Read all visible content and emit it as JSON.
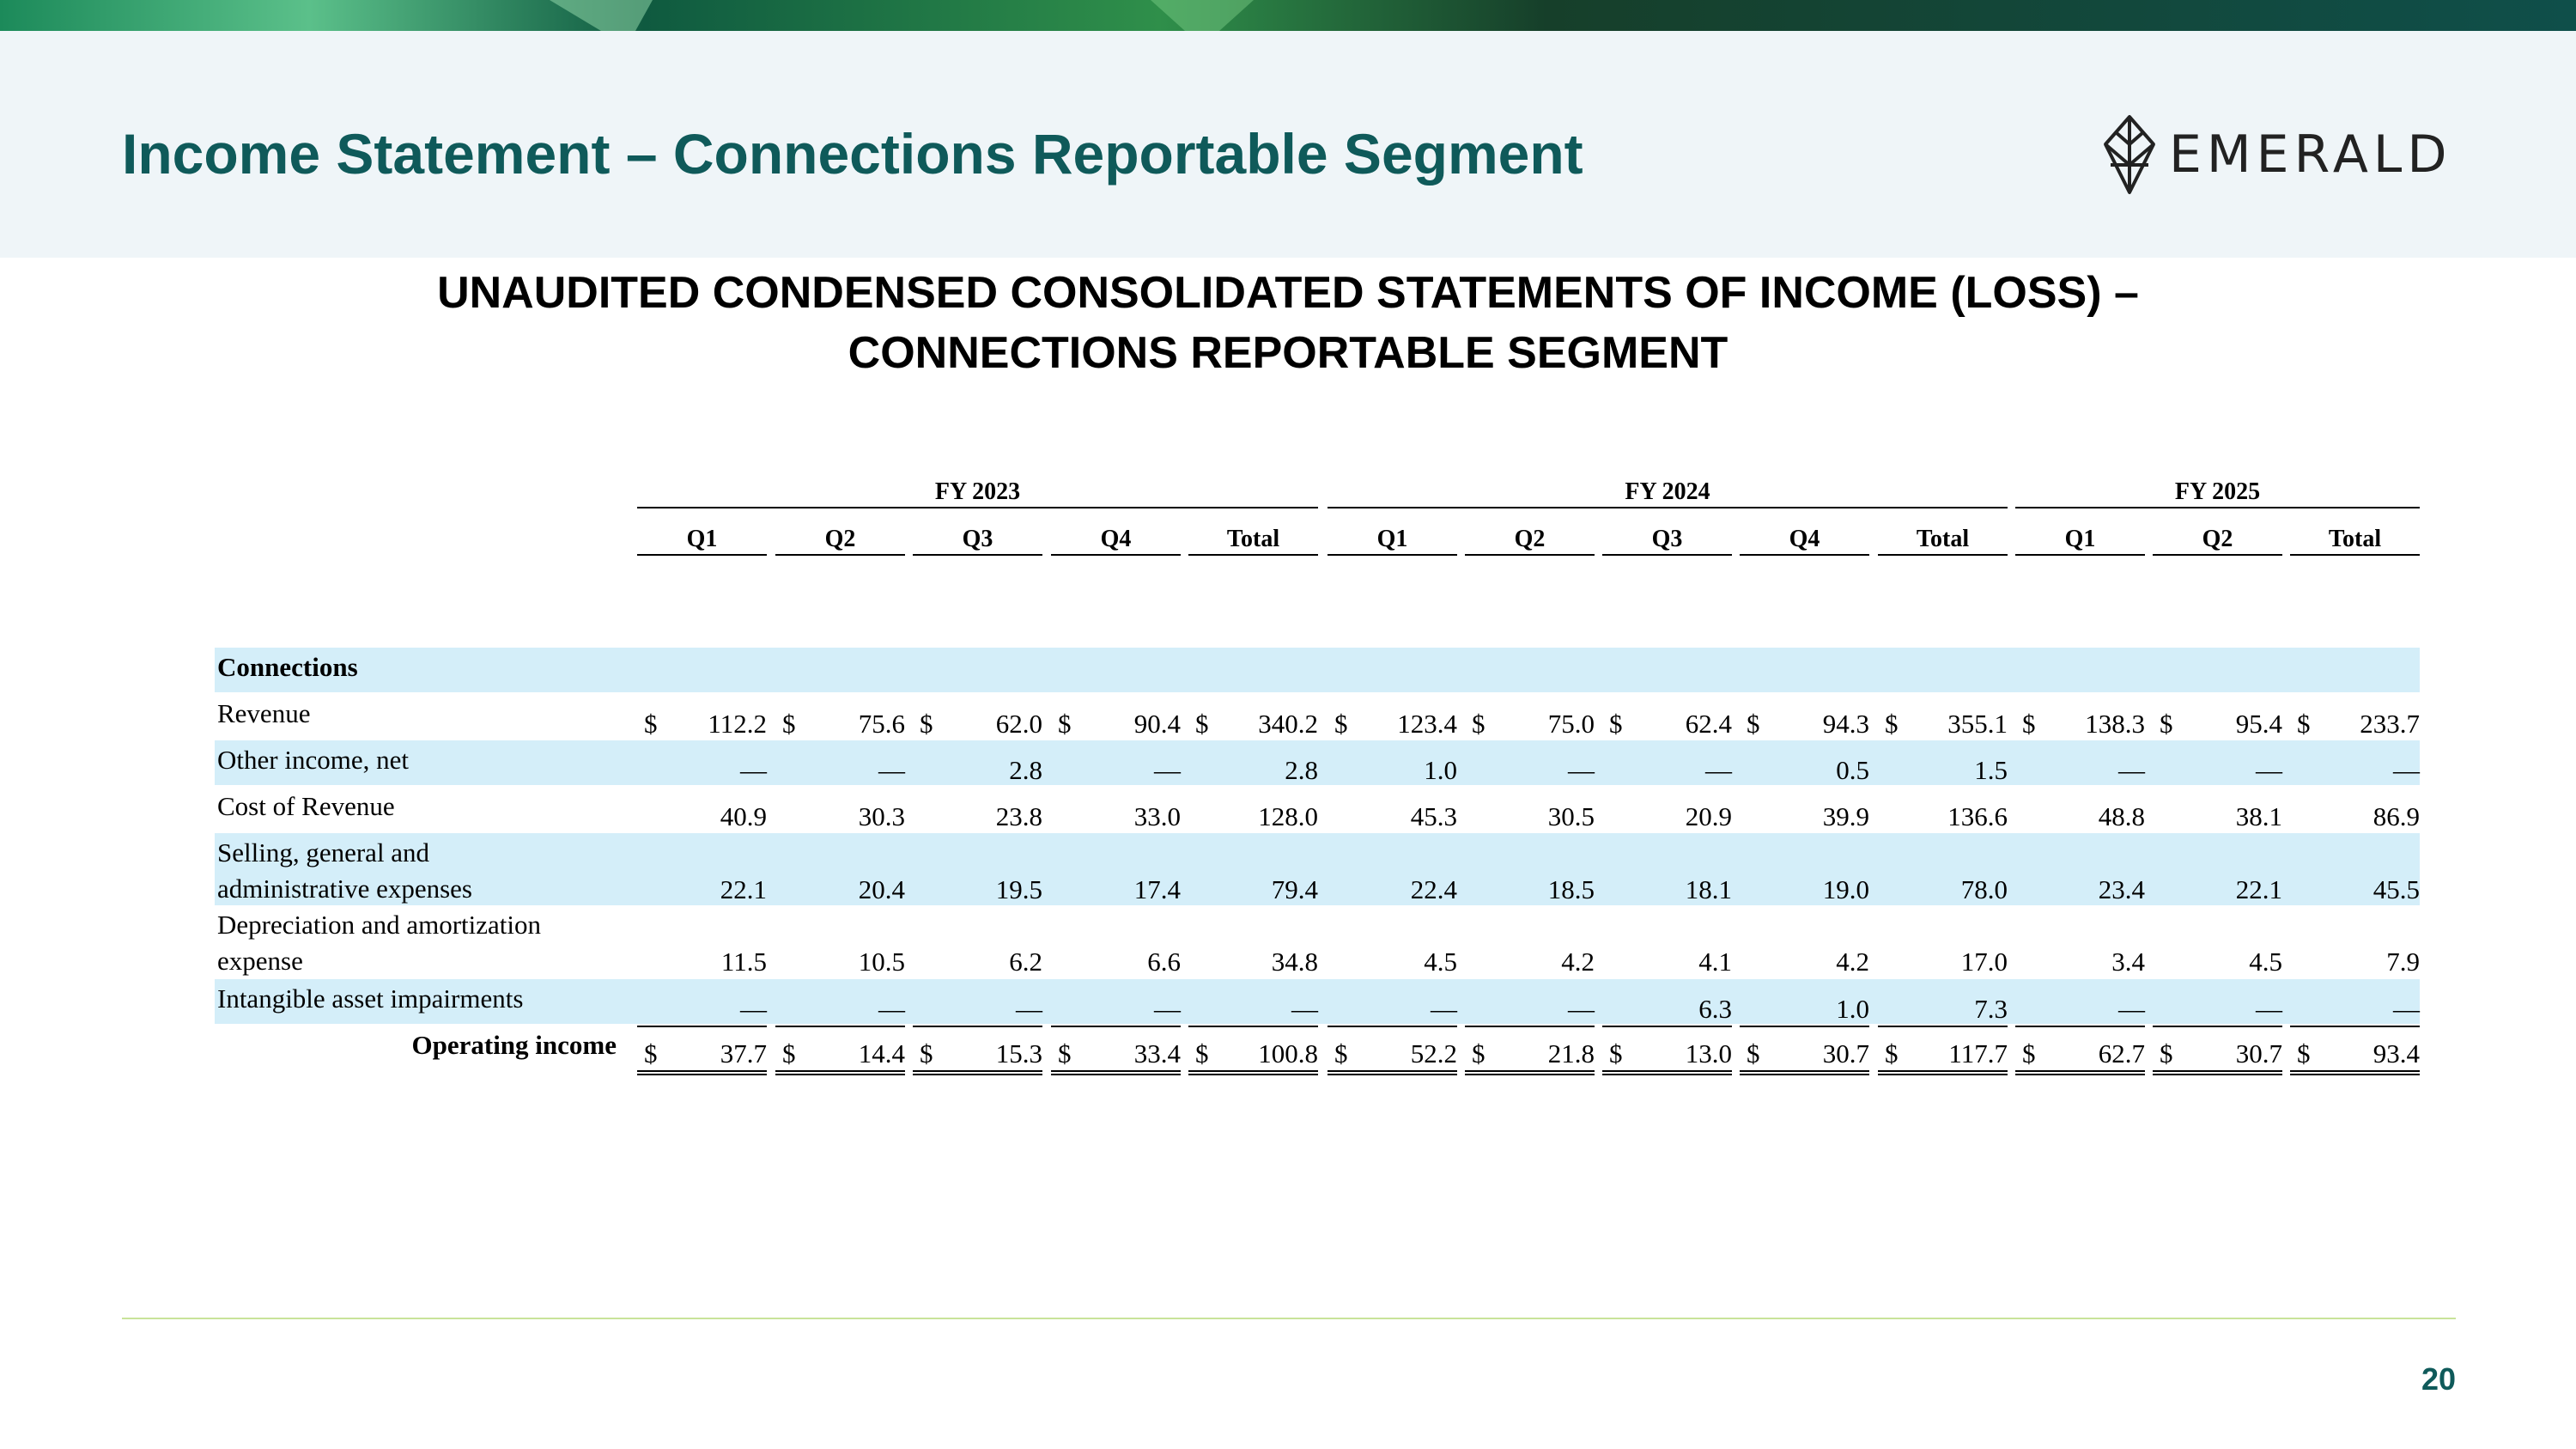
{
  "slide": {
    "title": "Income Statement – Connections Reportable Segment",
    "logo_text": "EMERALD",
    "subtitle_line1": "UNAUDITED CONDENSED CONSOLIDATED STATEMENTS OF INCOME (LOSS) –",
    "subtitle_line2": "CONNECTIONS REPORTABLE SEGMENT",
    "page_number": "20",
    "colors": {
      "title": "#0f5a5a",
      "band": "#d4eef9",
      "header_bg": "#eff5f8",
      "footer_rule": "#c9e39a"
    }
  },
  "table": {
    "fiscal_years": [
      "FY 2023",
      "FY 2024",
      "FY 2025"
    ],
    "columns": [
      {
        "fy": "FY 2023",
        "label": "Q1"
      },
      {
        "fy": "FY 2023",
        "label": "Q2"
      },
      {
        "fy": "FY 2023",
        "label": "Q3"
      },
      {
        "fy": "FY 2023",
        "label": "Q4"
      },
      {
        "fy": "FY 2023",
        "label": "Total"
      },
      {
        "fy": "FY 2024",
        "label": "Q1"
      },
      {
        "fy": "FY 2024",
        "label": "Q2"
      },
      {
        "fy": "FY 2024",
        "label": "Q3"
      },
      {
        "fy": "FY 2024",
        "label": "Q4"
      },
      {
        "fy": "FY 2024",
        "label": "Total"
      },
      {
        "fy": "FY 2025",
        "label": "Q1"
      },
      {
        "fy": "FY 2025",
        "label": "Q2"
      },
      {
        "fy": "FY 2025",
        "label": "Total"
      }
    ],
    "section_label": "Connections",
    "currency_symbol": "$",
    "rows": [
      {
        "label": "Revenue",
        "values": [
          "112.2",
          "75.6",
          "62.0",
          "90.4",
          "340.2",
          "123.4",
          "75.0",
          "62.4",
          "94.3",
          "355.1",
          "138.3",
          "95.4",
          "233.7"
        ]
      },
      {
        "label": "Other income, net",
        "values": [
          "—",
          "—",
          "2.8",
          "—",
          "2.8",
          "1.0",
          "—",
          "—",
          "0.5",
          "1.5",
          "—",
          "—",
          "—"
        ]
      },
      {
        "label": "Cost of Revenue",
        "values": [
          "40.9",
          "30.3",
          "23.8",
          "33.0",
          "128.0",
          "45.3",
          "30.5",
          "20.9",
          "39.9",
          "136.6",
          "48.8",
          "38.1",
          "86.9"
        ]
      },
      {
        "label_line1": "Selling, general and",
        "label_line2": "administrative expenses",
        "values": [
          "22.1",
          "20.4",
          "19.5",
          "17.4",
          "79.4",
          "22.4",
          "18.5",
          "18.1",
          "19.0",
          "78.0",
          "23.4",
          "22.1",
          "45.5"
        ]
      },
      {
        "label_line1": "Depreciation and amortization",
        "label_line2": "expense",
        "values": [
          "11.5",
          "10.5",
          "6.2",
          "6.6",
          "34.8",
          "4.5",
          "4.2",
          "4.1",
          "4.2",
          "17.0",
          "3.4",
          "4.5",
          "7.9"
        ]
      },
      {
        "label": "Intangible asset impairments",
        "values": [
          "—",
          "—",
          "—",
          "—",
          "—",
          "—",
          "—",
          "6.3",
          "1.0",
          "7.3",
          "—",
          "—",
          "—"
        ]
      }
    ],
    "total_row": {
      "label": "Operating income",
      "values": [
        "37.7",
        "14.4",
        "15.3",
        "33.4",
        "100.8",
        "52.2",
        "21.8",
        "13.0",
        "30.7",
        "117.7",
        "62.7",
        "30.7",
        "93.4"
      ]
    }
  }
}
